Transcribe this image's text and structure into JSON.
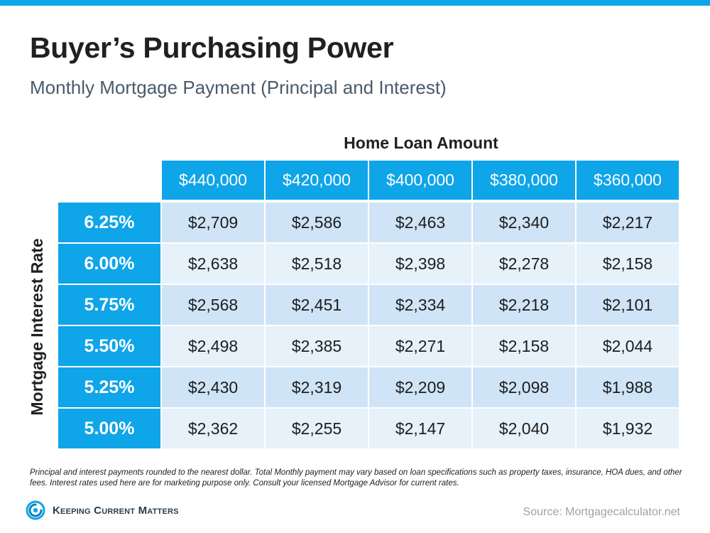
{
  "header": {
    "title": "Buyer’s Purchasing Power",
    "subtitle": "Monthly Mortgage Payment (Principal and Interest)"
  },
  "colors": {
    "accent": "#0ea5e9",
    "row_dark": "#cfe4f6",
    "row_light": "#e6f1fa"
  },
  "chart_data": {
    "type": "table",
    "title": "Buyer’s Purchasing Power",
    "subtitle": "Monthly Mortgage Payment (Principal and Interest)",
    "column_group_label": "Home Loan Amount",
    "row_group_label": "Mortgage  Interest Rate",
    "columns": [
      "$440,000",
      "$420,000",
      "$400,000",
      "$380,000",
      "$360,000"
    ],
    "rows": [
      {
        "rate": "6.25%",
        "values": [
          "$2,709",
          "$2,586",
          "$2,463",
          "$2,340",
          "$2,217"
        ]
      },
      {
        "rate": "6.00%",
        "values": [
          "$2,638",
          "$2,518",
          "$2,398",
          "$2,278",
          "$2,158"
        ]
      },
      {
        "rate": "5.75%",
        "values": [
          "$2,568",
          "$2,451",
          "$2,334",
          "$2,218",
          "$2,101"
        ]
      },
      {
        "rate": "5.50%",
        "values": [
          "$2,498",
          "$2,385",
          "$2,271",
          "$2,158",
          "$2,044"
        ]
      },
      {
        "rate": "5.25%",
        "values": [
          "$2,430",
          "$2,319",
          "$2,209",
          "$2,098",
          "$1,988"
        ]
      },
      {
        "rate": "5.00%",
        "values": [
          "$2,362",
          "$2,255",
          "$2,147",
          "$2,040",
          "$1,932"
        ]
      }
    ]
  },
  "footer": {
    "note": "Principal and interest payments rounded to the nearest dollar. Total Monthly payment may vary based on loan specifications such as property taxes, insurance, HOA dues, and other fees. Interest rates used here are for marketing purpose only. Consult your licensed Mortgage Advisor for current rates.",
    "brand": "Keeping Current Matters",
    "brand_icon": "kcm-swirl-icon",
    "source": "Source: Mortgagecalculator.net"
  }
}
